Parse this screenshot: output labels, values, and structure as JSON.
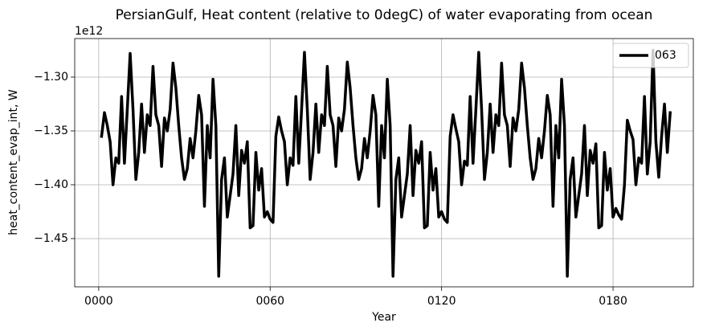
{
  "chart_data": {
    "type": "line",
    "title": "PersianGulf, Heat content (relative to 0degC) of water evaporating from ocean",
    "x_label": "Year",
    "y_label": "heat_content_evap_int, W",
    "y_offset_label": "1e12",
    "x": [
      1,
      2,
      3,
      4,
      5,
      6,
      7,
      8,
      9,
      10,
      11,
      12,
      13,
      14,
      15,
      16,
      17,
      18,
      19,
      20,
      21,
      22,
      23,
      24,
      25,
      26,
      27,
      28,
      29,
      30,
      31,
      32,
      33,
      34,
      35,
      36,
      37,
      38,
      39,
      40,
      41,
      42,
      43,
      44,
      45,
      46,
      47,
      48,
      49,
      50,
      51,
      52,
      53,
      54,
      55,
      56,
      57,
      58,
      59,
      60,
      61,
      62,
      63,
      64,
      65,
      66,
      67,
      68,
      69,
      70,
      71,
      72,
      73,
      74,
      75,
      76,
      77,
      78,
      79,
      80,
      81,
      82,
      83,
      84,
      85,
      86,
      87,
      88,
      89,
      90,
      91,
      92,
      93,
      94,
      95,
      96,
      97,
      98,
      99,
      100,
      101,
      102,
      103,
      104,
      105,
      106,
      107,
      108,
      109,
      110,
      111,
      112,
      113,
      114,
      115,
      116,
      117,
      118,
      119,
      120,
      121,
      122,
      123,
      124,
      125,
      126,
      127,
      128,
      129,
      130,
      131,
      132,
      133,
      134,
      135,
      136,
      137,
      138,
      139,
      140,
      141,
      142,
      143,
      144,
      145,
      146,
      147,
      148,
      149,
      150,
      151,
      152,
      153,
      154,
      155,
      156,
      157,
      158,
      159,
      160,
      161,
      162,
      163,
      164,
      165,
      166,
      167,
      168,
      169,
      170,
      171,
      172,
      173,
      174,
      175,
      176,
      177,
      178,
      179,
      180,
      181,
      182,
      183,
      184,
      185,
      186,
      187,
      188,
      189,
      190,
      191,
      192,
      193,
      194,
      195,
      196,
      197,
      198,
      199,
      200
    ],
    "series": [
      {
        "name": "063",
        "color": "#000000",
        "values": [
          -1.355,
          -1.333,
          -1.345,
          -1.36,
          -1.4,
          -1.375,
          -1.38,
          -1.318,
          -1.38,
          -1.33,
          -1.278,
          -1.33,
          -1.395,
          -1.37,
          -1.325,
          -1.37,
          -1.335,
          -1.345,
          -1.29,
          -1.335,
          -1.345,
          -1.383,
          -1.338,
          -1.35,
          -1.33,
          -1.287,
          -1.31,
          -1.345,
          -1.375,
          -1.395,
          -1.385,
          -1.357,
          -1.375,
          -1.35,
          -1.317,
          -1.335,
          -1.42,
          -1.345,
          -1.375,
          -1.302,
          -1.345,
          -1.485,
          -1.395,
          -1.375,
          -1.43,
          -1.41,
          -1.39,
          -1.345,
          -1.41,
          -1.368,
          -1.38,
          -1.36,
          -1.44,
          -1.438,
          -1.37,
          -1.405,
          -1.385,
          -1.43,
          -1.425,
          -1.432,
          -1.435,
          -1.355,
          -1.337,
          -1.35,
          -1.36,
          -1.4,
          -1.375,
          -1.382,
          -1.318,
          -1.38,
          -1.33,
          -1.277,
          -1.33,
          -1.395,
          -1.37,
          -1.325,
          -1.37,
          -1.335,
          -1.345,
          -1.29,
          -1.335,
          -1.345,
          -1.383,
          -1.338,
          -1.35,
          -1.33,
          -1.286,
          -1.31,
          -1.345,
          -1.375,
          -1.395,
          -1.385,
          -1.357,
          -1.375,
          -1.35,
          -1.317,
          -1.335,
          -1.42,
          -1.345,
          -1.375,
          -1.302,
          -1.345,
          -1.485,
          -1.395,
          -1.375,
          -1.43,
          -1.41,
          -1.39,
          -1.345,
          -1.41,
          -1.368,
          -1.38,
          -1.36,
          -1.44,
          -1.438,
          -1.37,
          -1.405,
          -1.385,
          -1.43,
          -1.425,
          -1.432,
          -1.435,
          -1.355,
          -1.335,
          -1.348,
          -1.36,
          -1.4,
          -1.378,
          -1.382,
          -1.318,
          -1.38,
          -1.33,
          -1.277,
          -1.33,
          -1.395,
          -1.37,
          -1.325,
          -1.37,
          -1.335,
          -1.345,
          -1.287,
          -1.335,
          -1.345,
          -1.383,
          -1.338,
          -1.35,
          -1.33,
          -1.287,
          -1.31,
          -1.345,
          -1.375,
          -1.395,
          -1.385,
          -1.357,
          -1.375,
          -1.35,
          -1.317,
          -1.335,
          -1.42,
          -1.345,
          -1.375,
          -1.302,
          -1.345,
          -1.485,
          -1.395,
          -1.375,
          -1.43,
          -1.41,
          -1.39,
          -1.345,
          -1.41,
          -1.368,
          -1.38,
          -1.362,
          -1.44,
          -1.438,
          -1.37,
          -1.405,
          -1.385,
          -1.43,
          -1.422,
          -1.428,
          -1.432,
          -1.4,
          -1.34,
          -1.35,
          -1.358,
          -1.4,
          -1.375,
          -1.38,
          -1.318,
          -1.39,
          -1.36,
          -1.275,
          -1.36,
          -1.393,
          -1.355,
          -1.325,
          -1.37,
          -1.333
        ]
      }
    ],
    "xlim": [
      -8.4,
      208.1
    ],
    "ylim": [
      -1.4948,
      -1.2642
    ],
    "xticks": [
      {
        "value": 0,
        "label": "0000"
      },
      {
        "value": 60,
        "label": "0060"
      },
      {
        "value": 120,
        "label": "0120"
      },
      {
        "value": 180,
        "label": "0180"
      }
    ],
    "yticks": [
      {
        "value": -1.45,
        "label": "−1.45"
      },
      {
        "value": -1.4,
        "label": "−1.40"
      },
      {
        "value": -1.35,
        "label": "−1.35"
      },
      {
        "value": -1.3,
        "label": "−1.30"
      }
    ],
    "grid": true,
    "legend": "upper right",
    "line_width": 3.5
  }
}
